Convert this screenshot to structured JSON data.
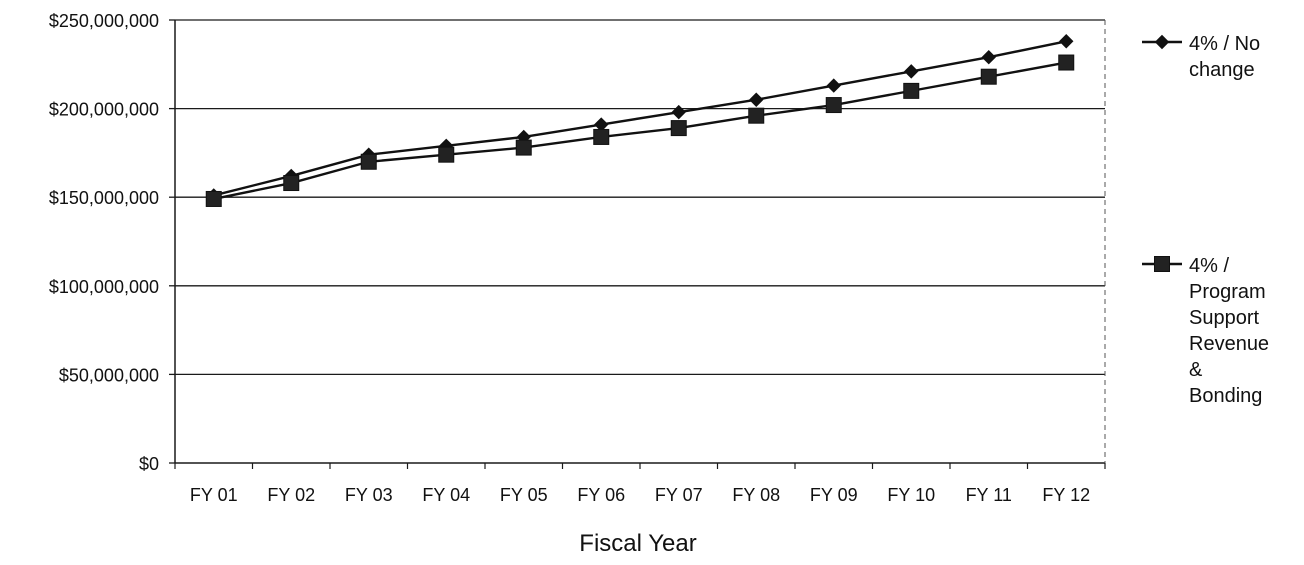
{
  "chart_data": {
    "type": "line",
    "title": "",
    "xlabel": "Fiscal Year",
    "ylabel": "",
    "categories": [
      "FY 01",
      "FY 02",
      "FY 03",
      "FY 04",
      "FY 05",
      "FY 06",
      "FY 07",
      "FY 08",
      "FY 09",
      "FY 10",
      "FY 11",
      "FY 12"
    ],
    "ylim": [
      0,
      250000000
    ],
    "yticks": [
      {
        "value": 0,
        "label": "$0"
      },
      {
        "value": 50000000,
        "label": "$50,000,000"
      },
      {
        "value": 100000000,
        "label": "$100,000,000"
      },
      {
        "value": 150000000,
        "label": "$150,000,000"
      },
      {
        "value": 200000000,
        "label": "$200,000,000"
      },
      {
        "value": 250000000,
        "label": "$250,000,000"
      }
    ],
    "grid": true,
    "legend_position": "right",
    "series": [
      {
        "name": "4% / No change",
        "legend_lines": [
          "4% / No",
          "change"
        ],
        "marker": "diamond",
        "values": [
          151000000,
          162000000,
          174000000,
          179000000,
          184000000,
          191000000,
          198000000,
          205000000,
          213000000,
          221000000,
          229000000,
          238000000
        ]
      },
      {
        "name": "4% / Program Support Revenue & Bonding",
        "legend_lines": [
          "4% /",
          "Program",
          "Support",
          "Revenue",
          "&",
          "Bonding"
        ],
        "marker": "square",
        "values": [
          149000000,
          158000000,
          170000000,
          174000000,
          178000000,
          184000000,
          189000000,
          196000000,
          202000000,
          210000000,
          218000000,
          226000000
        ]
      }
    ]
  }
}
